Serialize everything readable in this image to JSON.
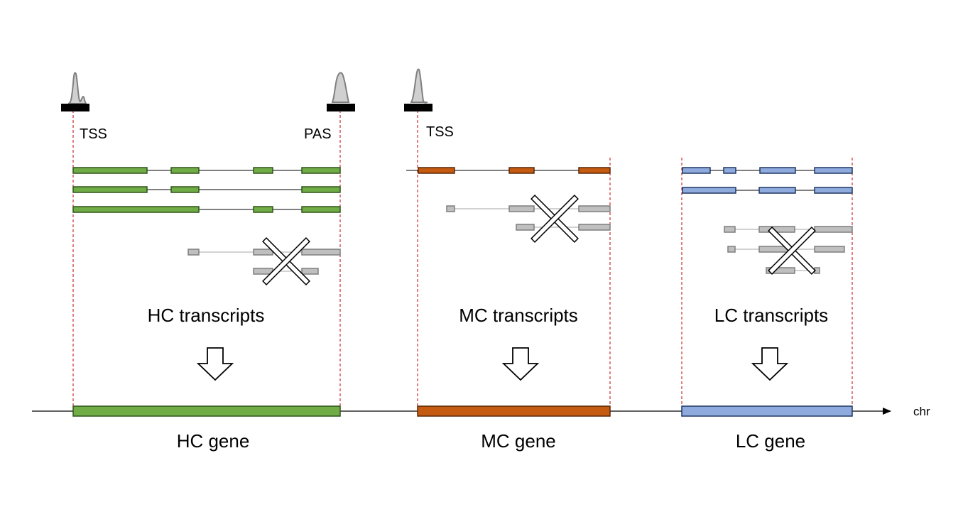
{
  "labels": {
    "tss": "TSS",
    "pas": "PAS",
    "chr": "chr"
  },
  "groups": {
    "hc": {
      "transcripts_label": "HC transcripts",
      "gene_label": "HC gene",
      "color": "#70ad47",
      "border": "#2f5418"
    },
    "mc": {
      "transcripts_label": "MC transcripts",
      "gene_label": "MC gene",
      "color": "#c55a11",
      "border": "#5a2808"
    },
    "lc": {
      "transcripts_label": "LC transcripts",
      "gene_label": "LC gene",
      "color": "#8faadc",
      "border": "#1f3864"
    }
  },
  "colors": {
    "rejected_fill": "#bfbfbf",
    "rejected_border": "#7f7f7f",
    "dashed_line": "#c00000",
    "peak_fill": "#d0d0d0",
    "peak_stroke": "#808080"
  }
}
